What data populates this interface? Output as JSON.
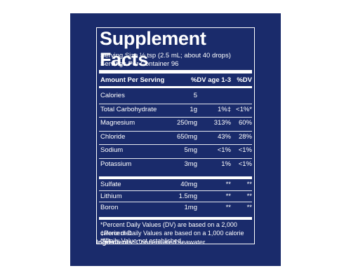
{
  "label": {
    "title": "Supplement Facts",
    "serving_size": "Serving Size ½ tsp (2.5 mL; about 40 drops)",
    "servings_per_container": "Servings Per Container 96",
    "header": {
      "amount": "Amount Per Serving",
      "dv_child": "%DV age 1-3",
      "dv": "%DV"
    },
    "rows_group1": [
      {
        "name": "Calories",
        "amount": "5",
        "dv_child": "",
        "dv": ""
      },
      {
        "name": "Total Carbohydrate",
        "amount": "1g",
        "dv_child": "1%‡",
        "dv": "<1%*"
      },
      {
        "name": "Magnesium",
        "amount": "250mg",
        "dv_child": "313%",
        "dv": "60%"
      },
      {
        "name": "Chloride",
        "amount": "650mg",
        "dv_child": "43%",
        "dv": "28%"
      },
      {
        "name": "Sodium",
        "amount": "5mg",
        "dv_child": "<1%",
        "dv": "<1%"
      },
      {
        "name": "Potassium",
        "amount": "3mg",
        "dv_child": "1%",
        "dv": "<1%"
      }
    ],
    "rows_group2": [
      {
        "name": "Sulfate",
        "amount": "40mg",
        "dv_child": "**",
        "dv": "**"
      },
      {
        "name": "Lithium",
        "amount": "1.5mg",
        "dv_child": "**",
        "dv": "**"
      },
      {
        "name": "Boron",
        "amount": "1mg",
        "dv_child": "**",
        "dv": "**"
      }
    ],
    "footnotes": [
      "*Percent Daily Values (DV) are based on a 2,000 calorie diet.",
      "‡Percent Daily Values are based on a 1,000 calorie diet.",
      "**Daily Value not established."
    ]
  },
  "ingredients": {
    "label": "Ingredients:",
    "text": " Concentrated seawater."
  },
  "colors": {
    "panel_background": "#1a2b6b",
    "text": "#ffffff"
  }
}
